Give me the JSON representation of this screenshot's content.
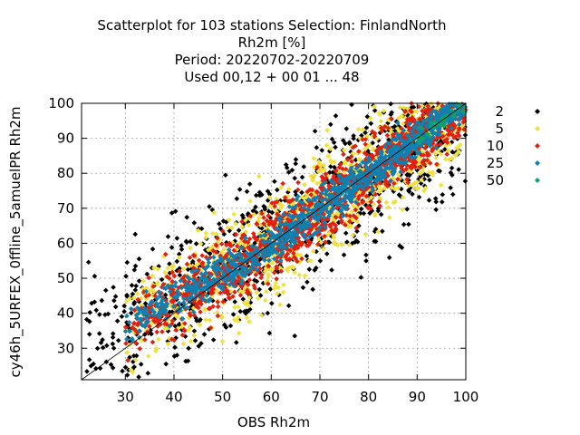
{
  "chart_data": {
    "type": "scatter",
    "title_lines": [
      "Scatterplot for  103 stations Selection: FinlandNorth",
      "Rh2m [%]",
      "Period: 20220702-20220709",
      "Used  00,12  + 00 01 ... 48"
    ],
    "xlabel": "OBS Rh2m",
    "ylabel": "cy46h_5URFEX_0ffline_5amuelPR Rh2m",
    "xlim": [
      21,
      100
    ],
    "ylim": [
      21,
      100
    ],
    "x_ticks": [
      "30",
      "40",
      "50",
      "60",
      "70",
      "80",
      "90",
      "100"
    ],
    "y_ticks": [
      "30",
      "40",
      "50",
      "60",
      "70",
      "80",
      "90",
      "100"
    ],
    "x_tick_values": [
      30,
      40,
      50,
      60,
      70,
      80,
      90,
      100
    ],
    "y_tick_values": [
      30,
      40,
      50,
      60,
      70,
      80,
      90,
      100
    ],
    "grid": true,
    "diagonal": true,
    "legend_position": "right",
    "series": [
      {
        "name": "2",
        "color": "#000000",
        "spread": 11,
        "count": 900
      },
      {
        "name": "5",
        "color": "#f0e040",
        "spread": 7.5,
        "count": 1100
      },
      {
        "name": "10",
        "color": "#e02010",
        "spread": 5,
        "count": 1300
      },
      {
        "name": "25",
        "color": "#1080b0",
        "spread": 2.8,
        "count": 1000
      },
      {
        "name": "50",
        "color": "#10a070",
        "spread": 1.2,
        "count": 40
      }
    ]
  }
}
